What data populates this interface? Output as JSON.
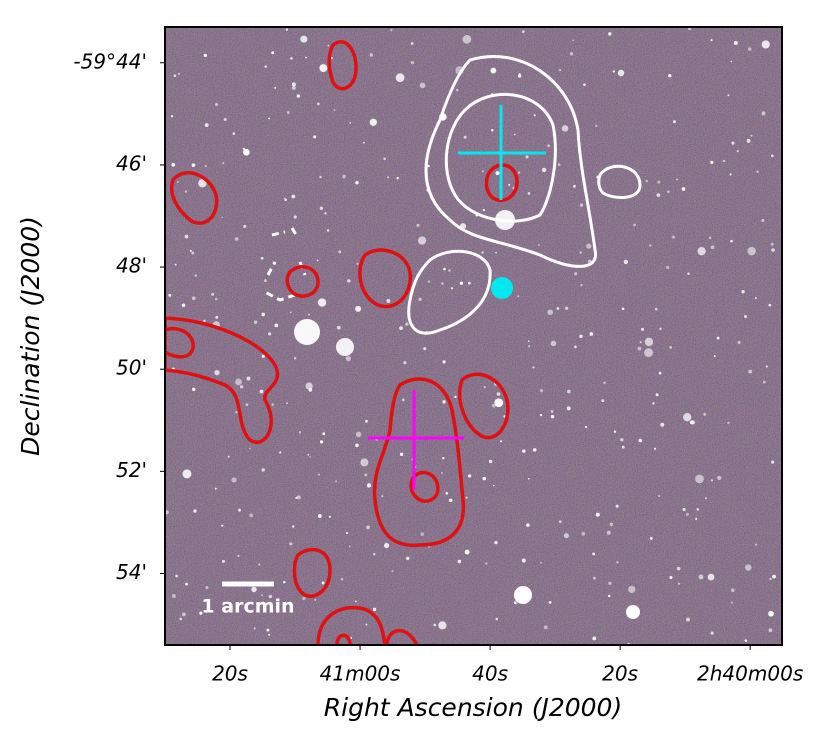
{
  "chart_data": {
    "type": "image",
    "xlabel": "Right Ascension (J2000)",
    "ylabel": "Declination (J2000)",
    "xlim": [
      9690,
      9595.1
    ],
    "xticks": [
      {
        "value": 9680,
        "label": "20s"
      },
      {
        "value": 9660,
        "label": "41m00s"
      },
      {
        "value": 9640,
        "label": "40s"
      },
      {
        "value": 9620,
        "label": "20s"
      },
      {
        "value": 9600,
        "label": "2h40m00s"
      }
    ],
    "ylim": [
      -3595.4,
      -3583.3
    ],
    "yticks": [
      {
        "value": -3584,
        "label": "-59°44'"
      },
      {
        "value": -3586,
        "label": "46'"
      },
      {
        "value": -3588,
        "label": "48'"
      },
      {
        "value": -3590,
        "label": "50'"
      },
      {
        "value": -3592,
        "label": "52'"
      },
      {
        "value": -3594,
        "label": "54'"
      }
    ],
    "scale_bar_label": "1 arcmin"
  }
}
